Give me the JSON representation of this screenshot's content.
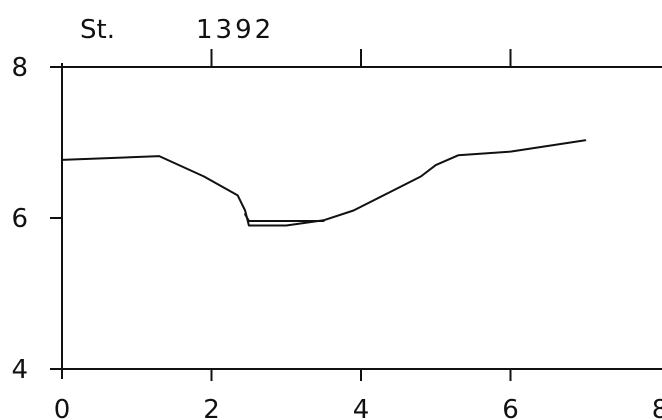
{
  "chart_data": {
    "type": "line",
    "title_left": "St.",
    "title_right": "1392",
    "xlabel": "",
    "ylabel": "",
    "xlim": [
      0,
      8
    ],
    "ylim": [
      4,
      8
    ],
    "x_ticks": [
      0,
      2,
      4,
      6,
      8
    ],
    "y_ticks": [
      4,
      6,
      8
    ],
    "x_tick_labels": [
      "0",
      "2",
      "4",
      "6",
      "8"
    ],
    "y_tick_labels": [
      "4",
      "6",
      "8"
    ],
    "grid": false,
    "series": [
      {
        "x": [
          0.0,
          1.3,
          1.9,
          2.35,
          2.45,
          2.5,
          3.0,
          3.5,
          3.9,
          4.4,
          4.8,
          5.0,
          5.3,
          6.0,
          7.0
        ],
        "y": [
          6.77,
          6.82,
          6.55,
          6.3,
          6.1,
          5.9,
          5.9,
          5.97,
          6.1,
          6.35,
          6.55,
          6.7,
          6.83,
          6.88,
          7.03
        ]
      },
      {
        "x": [
          2.45,
          2.5,
          3.0,
          3.5
        ],
        "y": [
          6.05,
          5.96,
          5.96,
          5.96
        ]
      }
    ]
  }
}
